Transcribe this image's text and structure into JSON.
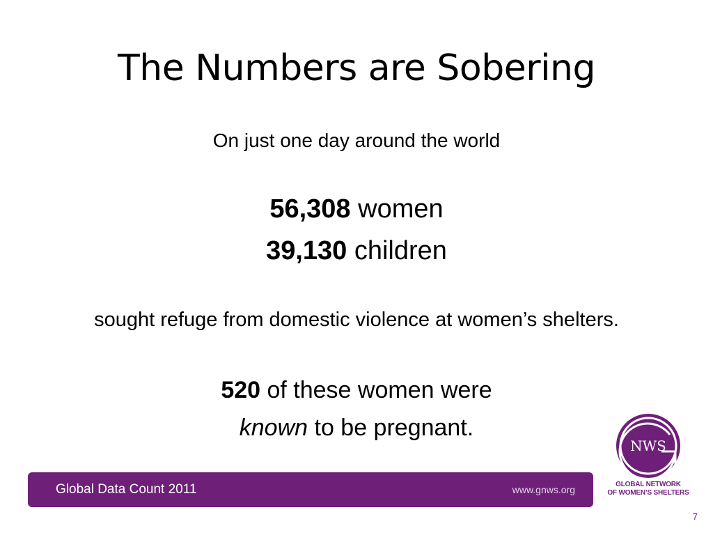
{
  "slide": {
    "title": "The Numbers are Sobering",
    "subtitle": "On just one day around the world",
    "stats": [
      {
        "value": "56,308",
        "label": " women"
      },
      {
        "value": "39,130",
        "label": " children"
      }
    ],
    "refuge_text": "sought refuge from domestic violence at women’s shelters.",
    "pregnant": {
      "value": "520",
      "line1_rest": " of these women were",
      "emphasis": "known",
      "line2_rest": " to be pregnant."
    },
    "page_number": "7"
  },
  "footer": {
    "left_text": "Global Data Count 2011",
    "right_text": "www.gnws.org"
  },
  "logo": {
    "mark": "NWS",
    "line1": "GLOBAL NETWORK",
    "line2": "OF WOMEN’S SHELTERS",
    "icon": "gnws-logo-icon",
    "color": "#6e1f78"
  },
  "colors": {
    "accent": "#6e1f78"
  }
}
